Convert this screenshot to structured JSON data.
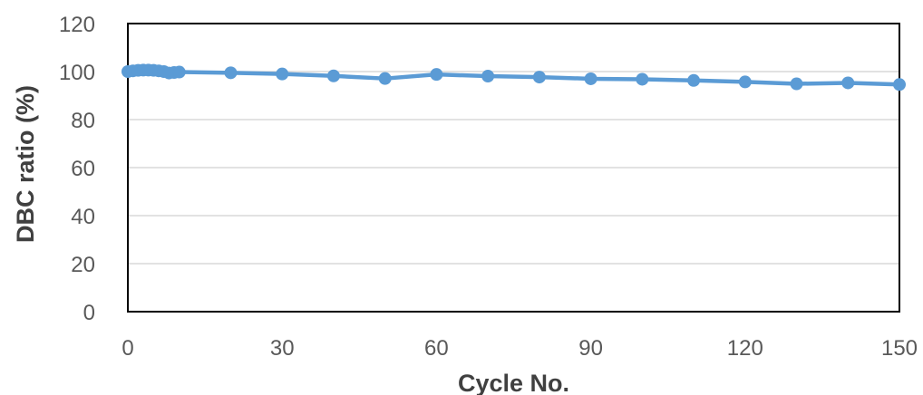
{
  "chart_data": {
    "type": "line",
    "xlabel": "Cycle No.",
    "ylabel": "DBC ratio (%)",
    "xlim": [
      0,
      150
    ],
    "ylim": [
      0,
      120
    ],
    "x_ticks": [
      0,
      30,
      60,
      90,
      120,
      150
    ],
    "y_ticks": [
      0,
      20,
      40,
      60,
      80,
      100,
      120
    ],
    "grid": "horizontal",
    "legend": "none",
    "series": [
      {
        "color": "#5b9bd5",
        "marker": "circle",
        "points": [
          [
            0,
            100
          ],
          [
            1,
            100.3
          ],
          [
            2,
            100.5
          ],
          [
            3,
            100.6
          ],
          [
            4,
            100.6
          ],
          [
            5,
            100.5
          ],
          [
            6,
            100.3
          ],
          [
            7,
            100
          ],
          [
            8,
            99.4
          ],
          [
            9,
            99.6
          ],
          [
            10,
            99.8
          ],
          [
            20,
            99.5
          ],
          [
            30,
            99
          ],
          [
            40,
            98.2
          ],
          [
            50,
            97.1
          ],
          [
            60,
            98.8
          ],
          [
            70,
            98.1
          ],
          [
            80,
            97.7
          ],
          [
            90,
            97
          ],
          [
            100,
            96.8
          ],
          [
            110,
            96.3
          ],
          [
            120,
            95.7
          ],
          [
            130,
            94.9
          ],
          [
            140,
            95.3
          ],
          [
            150,
            94.6
          ]
        ]
      }
    ]
  }
}
